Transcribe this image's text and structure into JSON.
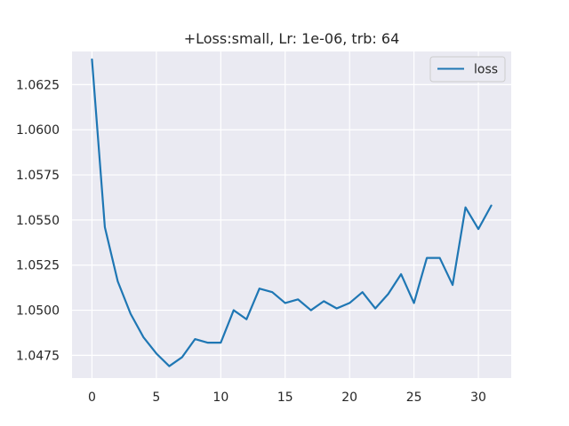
{
  "chart_data": {
    "type": "line",
    "title": "+Loss:small, Lr: 1e-06, trb: 64",
    "xlabel": "",
    "ylabel": "",
    "xlim": [
      -1.55,
      32.55
    ],
    "ylim": [
      1.04624,
      1.06434
    ],
    "xticks": [
      0,
      5,
      10,
      15,
      20,
      25,
      30
    ],
    "yticks": [
      1.0475,
      1.05,
      1.0525,
      1.055,
      1.0575,
      1.06,
      1.0625
    ],
    "ytick_labels": [
      "1.0475",
      "1.0500",
      "1.0525",
      "1.0550",
      "1.0575",
      "1.0600",
      "1.0625"
    ],
    "grid": true,
    "legend_position": "top-right",
    "colors": {
      "background": "#eaeaf2",
      "grid": "#ffffff",
      "series": "#1f77b4"
    },
    "series": [
      {
        "name": "loss",
        "x": [
          0,
          1,
          2,
          3,
          4,
          5,
          6,
          7,
          8,
          9,
          10,
          11,
          12,
          13,
          14,
          15,
          16,
          17,
          18,
          19,
          20,
          21,
          22,
          23,
          24,
          25,
          26,
          27,
          28,
          29,
          30,
          31
        ],
        "values": [
          1.0639,
          1.0546,
          1.0516,
          1.0498,
          1.0485,
          1.0476,
          1.0469,
          1.0474,
          1.0484,
          1.0482,
          1.0482,
          1.05,
          1.0495,
          1.0512,
          1.051,
          1.0504,
          1.0506,
          1.05,
          1.0505,
          1.0501,
          1.0504,
          1.051,
          1.0501,
          1.0509,
          1.052,
          1.0504,
          1.0529,
          1.0529,
          1.0514,
          1.0557,
          1.0545,
          1.0558
        ]
      }
    ]
  }
}
